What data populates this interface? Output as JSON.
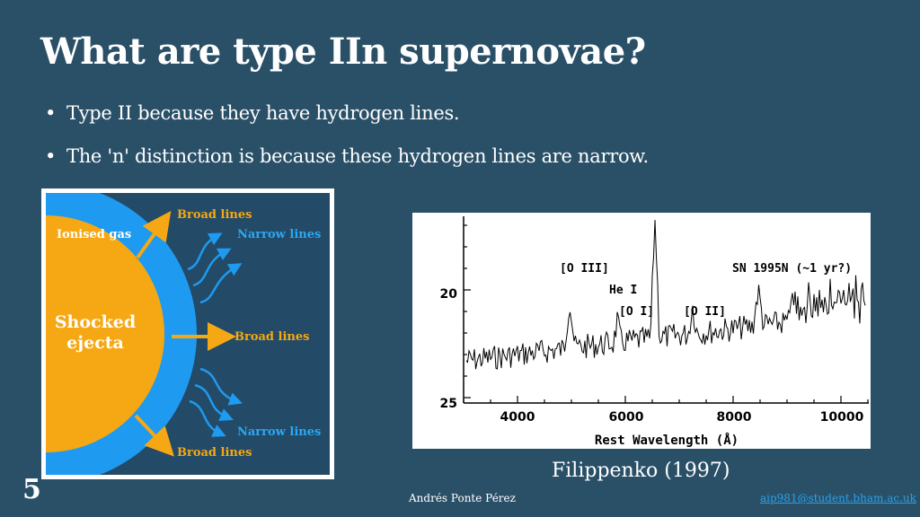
{
  "slide": {
    "title": "What are type IIn supernovae?",
    "bullets": [
      "Type II because they have hydrogen lines.",
      "The 'n' distinction is because these hydrogen lines are narrow."
    ],
    "page_number": "5",
    "author": "Andrés Ponte Pérez",
    "email": "aip981@student.bham.ac.uk",
    "caption": "Filippenko (1997)"
  },
  "diagram": {
    "ionised_gas_label": "Ionised gas",
    "core_label_line1": "Shocked",
    "core_label_line2": "ejecta",
    "broad_top": "Broad lines",
    "narrow_top": "Narrow lines",
    "broad_mid": "Broad lines",
    "narrow_bottom": "Narrow lines",
    "broad_bottom": "Broad lines",
    "colors": {
      "background": "#234a66",
      "ionised": "#1e9af0",
      "core": "#f5a814",
      "arrow_orange": "#f5a814",
      "arrow_blue": "#1e9af0",
      "orange_text": "#f5a814",
      "blue_text": "#2aa8f5"
    }
  },
  "spectrum": {
    "x_ticks": [
      "4000",
      "6000",
      "8000",
      "10000"
    ],
    "y_ticks": [
      "20",
      "25"
    ],
    "xlabel": "Rest Wavelength (Å)",
    "annotations": {
      "o3": "[O III]",
      "he1": "He I",
      "o1": "[O I]",
      "o2": "[O II]",
      "sn": "SN 1995N (~1 yr?)"
    }
  }
}
